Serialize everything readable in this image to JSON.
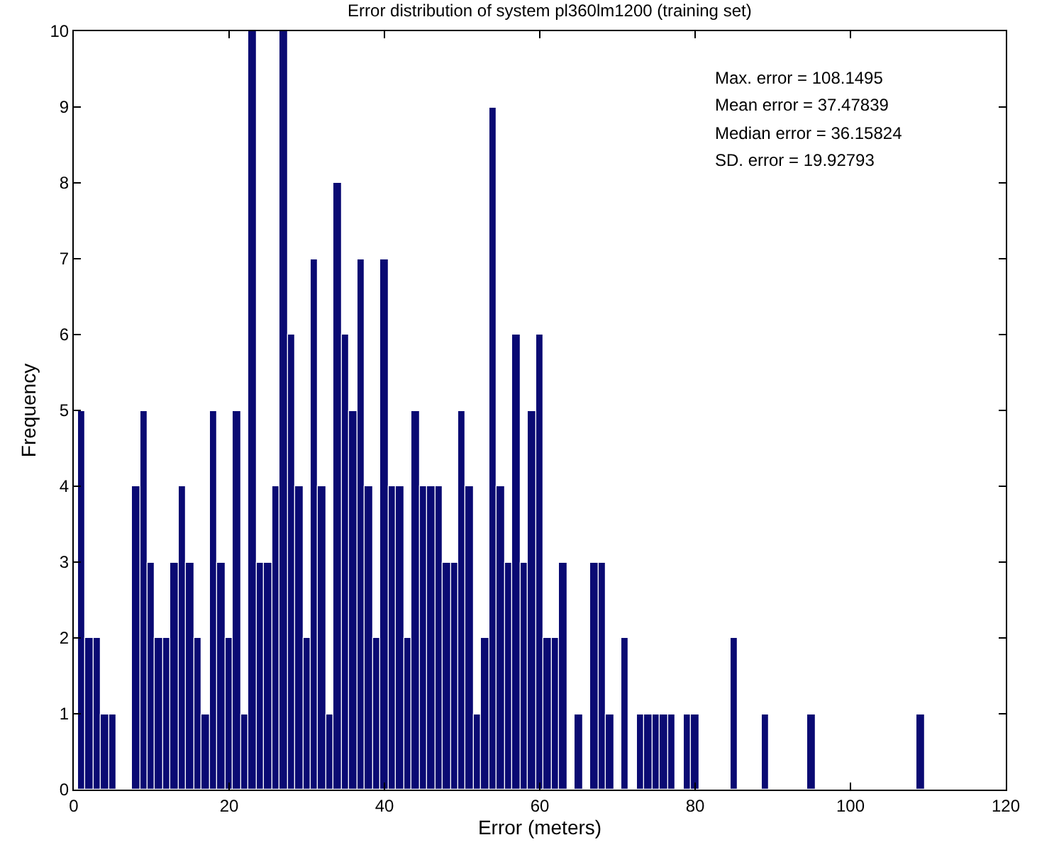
{
  "chart_data": {
    "type": "histogram",
    "title": "Error distribution of system pl360lm1200 (training set)",
    "xlabel": "Error (meters)",
    "ylabel": "Frequency",
    "bins": [
      0.5,
      1.5,
      2.5,
      3.5,
      4.5,
      5.5,
      6.5,
      7.5,
      8.5,
      9.5,
      10.5,
      11.5,
      12.5,
      13.5,
      14.5,
      15.5,
      16.5,
      17.5,
      18.5,
      19.5,
      20.5,
      21.5,
      22.5,
      23.5,
      24.5,
      25.5,
      26.5,
      27.5,
      28.5,
      29.5,
      30.5,
      31.5,
      32.5,
      33.5,
      34.5,
      35.5,
      36.5,
      37.5,
      38.5,
      39.5,
      40.5,
      41.5,
      42.5,
      43.5,
      44.5,
      45.5,
      46.5,
      47.5,
      48.5,
      49.5,
      50.5,
      51.5,
      52.5,
      53.5,
      54.5,
      55.5,
      56.5,
      57.5,
      58.5,
      59.5,
      60.5,
      61.5,
      62.5,
      63.5,
      64.5,
      65.5,
      66.5,
      67.5,
      68.5,
      69.5,
      70.5,
      71.5,
      72.5,
      73.5,
      74.5,
      75.5,
      76.5,
      77.5,
      78.5,
      79.5,
      80.5,
      81.5,
      82.5,
      83.5,
      84.5,
      85.5,
      86.5,
      87.5,
      88.5,
      89.5,
      90.5,
      91.5,
      92.5,
      93.5,
      94.5,
      95.5,
      96.5,
      97.5,
      98.5,
      99.5,
      100.5,
      101.5,
      102.5,
      103.5,
      104.5,
      105.5,
      106.5,
      107.5,
      108.5,
      109.5
    ],
    "values": [
      5,
      2,
      2,
      1,
      1,
      0,
      0,
      4,
      5,
      3,
      2,
      2,
      3,
      4,
      3,
      2,
      1,
      5,
      3,
      2,
      5,
      1,
      10,
      3,
      3,
      4,
      10,
      6,
      4,
      2,
      7,
      4,
      1,
      8,
      6,
      5,
      7,
      4,
      2,
      7,
      4,
      4,
      2,
      5,
      4,
      4,
      4,
      3,
      3,
      5,
      4,
      1,
      2,
      9,
      4,
      3,
      6,
      3,
      5,
      6,
      2,
      2,
      3,
      0,
      1,
      0,
      3,
      3,
      1,
      0,
      2,
      0,
      1,
      1,
      1,
      1,
      1,
      0,
      1,
      1,
      0,
      0,
      0,
      0,
      2,
      0,
      0,
      0,
      1,
      0,
      0,
      0,
      0,
      0,
      1,
      0,
      0,
      0,
      0,
      0,
      0,
      0,
      0,
      0,
      0,
      0,
      0,
      0,
      1
    ],
    "color": "#0a0a73",
    "xlim": [
      0,
      120
    ],
    "xticks": [
      0,
      20,
      40,
      60,
      80,
      100,
      120
    ],
    "ylim": [
      0,
      10
    ],
    "yticks": [
      0,
      1,
      2,
      3,
      4,
      5,
      6,
      7,
      8,
      9,
      10
    ],
    "annotations": [
      "Max. error = 108.1495",
      "Mean error = 37.47839",
      "Median error = 36.15824",
      "SD. error = 19.92793"
    ]
  }
}
